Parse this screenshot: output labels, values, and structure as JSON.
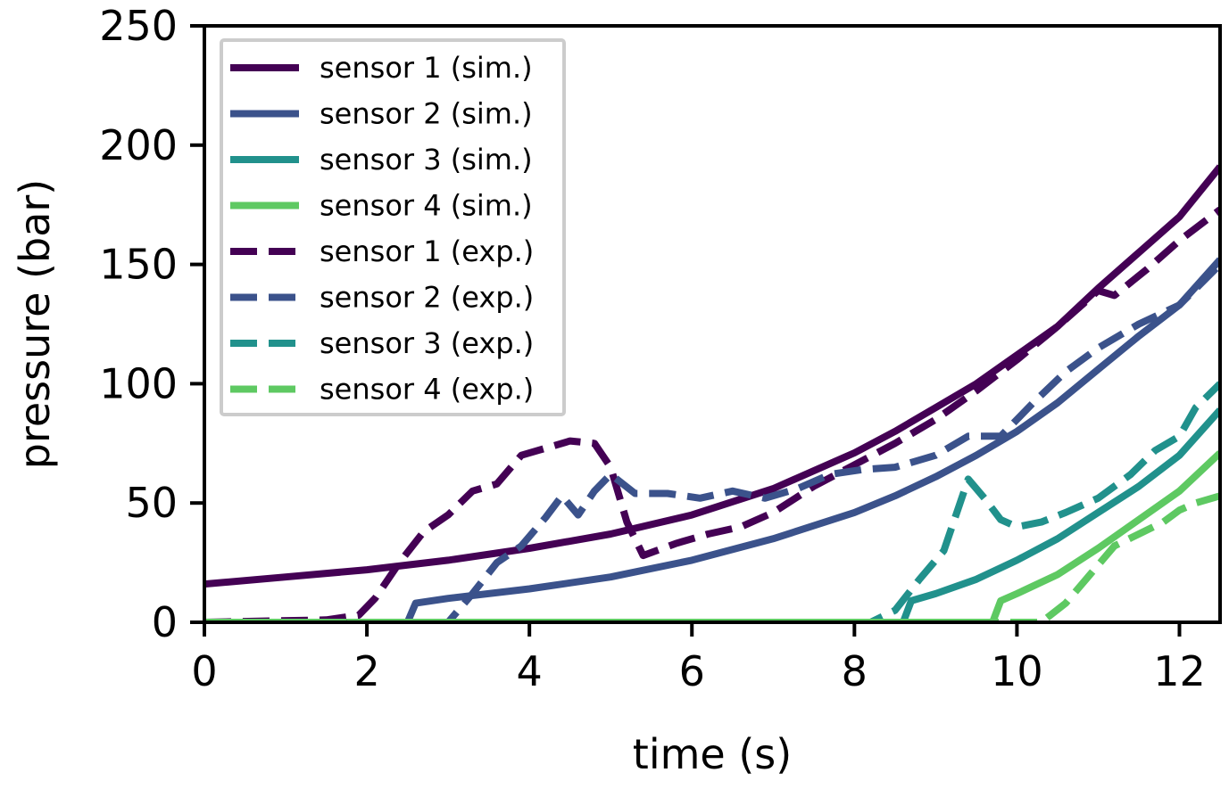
{
  "chart_data": {
    "type": "line",
    "title": "",
    "xlabel": "time (s)",
    "ylabel": "pressure (bar)",
    "xlim": [
      0,
      12.5
    ],
    "ylim": [
      0,
      250
    ],
    "xticks": [
      0,
      2,
      4,
      6,
      8,
      10,
      12
    ],
    "yticks": [
      0,
      50,
      100,
      150,
      200,
      250
    ],
    "grid": false,
    "legend_position": "top-left",
    "series": [
      {
        "name": "sensor 1 (sim.)",
        "color": "#440154",
        "style": "solid",
        "x": [
          0,
          1,
          2,
          3,
          4,
          5,
          6,
          7,
          8,
          8.5,
          9,
          9.5,
          10,
          10.5,
          11,
          11.5,
          12,
          12.5
        ],
        "y": [
          16,
          19,
          22,
          26,
          31,
          37,
          45,
          56,
          71,
          80,
          90,
          100,
          112,
          124,
          140,
          155,
          170,
          191
        ]
      },
      {
        "name": "sensor 2 (sim.)",
        "color": "#3b528b",
        "style": "solid",
        "x": [
          0,
          2.5,
          2.6,
          3,
          4,
          5,
          6,
          7,
          8,
          8.5,
          9,
          9.5,
          10,
          10.5,
          11,
          11.5,
          12,
          12.5
        ],
        "y": [
          0,
          0,
          8,
          10,
          14,
          19,
          26,
          35,
          46,
          53,
          61,
          70,
          80,
          92,
          106,
          120,
          133,
          152
        ]
      },
      {
        "name": "sensor 3 (sim.)",
        "color": "#21918c",
        "style": "solid",
        "x": [
          0,
          8.6,
          8.7,
          9,
          9.5,
          10,
          10.5,
          11,
          11.5,
          12,
          12.5
        ],
        "y": [
          0,
          0,
          9,
          12,
          18,
          26,
          35,
          46,
          57,
          70,
          89
        ]
      },
      {
        "name": "sensor 4 (sim.)",
        "color": "#5ec962",
        "style": "solid",
        "x": [
          0,
          9.7,
          9.8,
          10,
          10.5,
          11,
          11.5,
          12,
          12.5
        ],
        "y": [
          0,
          0,
          9,
          12,
          20,
          31,
          43,
          55,
          71
        ]
      },
      {
        "name": "sensor 1 (exp.)",
        "color": "#440154",
        "style": "dashed",
        "x": [
          0,
          1.5,
          1.9,
          2.1,
          2.4,
          2.7,
          3.0,
          3.3,
          3.6,
          3.9,
          4.2,
          4.5,
          4.8,
          5.0,
          5.2,
          5.4,
          5.8,
          6.2,
          6.6,
          7.0,
          7.5,
          8.0,
          8.5,
          9.0,
          9.5,
          10.0,
          10.5,
          11.0,
          11.2,
          11.6,
          12.0,
          12.5
        ],
        "y": [
          0,
          1,
          3,
          10,
          25,
          38,
          45,
          55,
          58,
          70,
          73,
          76,
          75,
          65,
          42,
          28,
          33,
          37,
          40,
          46,
          57,
          66,
          75,
          85,
          97,
          110,
          124,
          139,
          137,
          148,
          160,
          173
        ]
      },
      {
        "name": "sensor 2 (exp.)",
        "color": "#3b528b",
        "style": "dashed",
        "x": [
          0,
          3.0,
          3.3,
          3.6,
          3.9,
          4.2,
          4.4,
          4.6,
          4.8,
          5.0,
          5.3,
          5.7,
          6.1,
          6.5,
          6.9,
          7.3,
          7.7,
          8.1,
          8.5,
          9.0,
          9.4,
          9.8,
          10.2,
          10.6,
          11.0,
          11.5,
          12.0,
          12.5
        ],
        "y": [
          0,
          0,
          12,
          25,
          32,
          44,
          53,
          45,
          55,
          62,
          54,
          54,
          52,
          55,
          52,
          56,
          62,
          64,
          65,
          70,
          78,
          78,
          92,
          105,
          115,
          125,
          133,
          150
        ]
      },
      {
        "name": "sensor 3 (exp.)",
        "color": "#21918c",
        "style": "dashed",
        "x": [
          0,
          8.2,
          8.5,
          8.8,
          9.1,
          9.4,
          9.6,
          9.8,
          10.0,
          10.3,
          10.6,
          11.0,
          11.4,
          11.7,
          12.0,
          12.2,
          12.5
        ],
        "y": [
          0,
          0,
          5,
          18,
          30,
          60,
          52,
          43,
          40,
          42,
          46,
          52,
          62,
          72,
          78,
          90,
          100
        ]
      },
      {
        "name": "sensor 4 (exp.)",
        "color": "#5ec962",
        "style": "dashed",
        "x": [
          0,
          10.3,
          10.6,
          10.9,
          11.2,
          11.5,
          11.8,
          12.0,
          12.2,
          12.5
        ],
        "y": [
          0,
          0,
          8,
          20,
          32,
          37,
          42,
          47,
          50,
          53
        ]
      }
    ]
  }
}
